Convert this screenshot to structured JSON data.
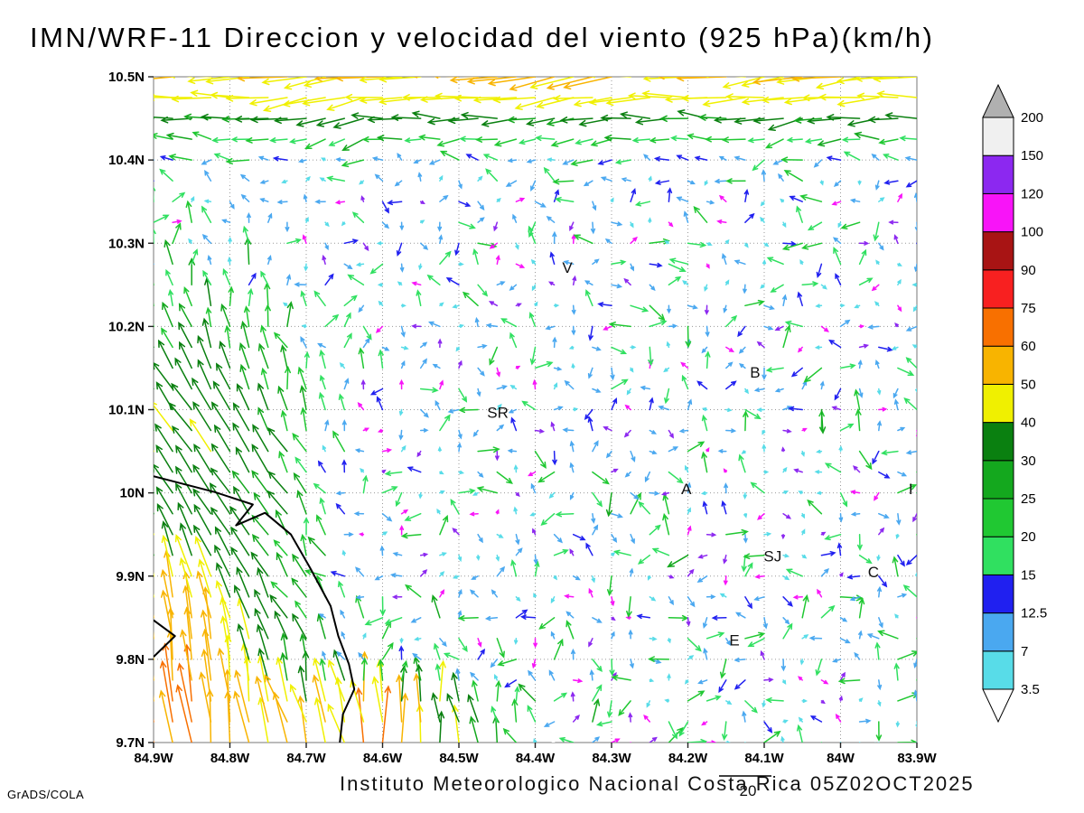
{
  "title": "IMN/WRF-11 Direccion y velocidad del viento (925 hPa)(km/h)",
  "footer": {
    "annotation": "Instituto Meteorologico Nacional Costa Rica 05Z02OCT2025",
    "reference_vector_label": "20",
    "credit": "GrADS/COLA"
  },
  "chart_data": {
    "type": "vector_field",
    "model": "IMN/WRF-11",
    "variable": "Direccion y velocidad del viento",
    "level": "925 hPa",
    "units": "km/h",
    "valid_time": "05Z02OCT2025",
    "grid_on": true,
    "x_axis": {
      "lon_range": [
        -84.9,
        -83.9
      ],
      "ticks": [
        {
          "label": "84.9W",
          "lon": -84.9
        },
        {
          "label": "84.8W",
          "lon": -84.8
        },
        {
          "label": "84.7W",
          "lon": -84.7
        },
        {
          "label": "84.6W",
          "lon": -84.6
        },
        {
          "label": "84.5W",
          "lon": -84.5
        },
        {
          "label": "84.4W",
          "lon": -84.4
        },
        {
          "label": "84.3W",
          "lon": -84.3
        },
        {
          "label": "84.2W",
          "lon": -84.2
        },
        {
          "label": "84.1W",
          "lon": -84.1
        },
        {
          "label": "84W",
          "lon": -84.0
        },
        {
          "label": "83.9W",
          "lon": -83.9
        }
      ]
    },
    "y_axis": {
      "lat_range": [
        9.7,
        10.5
      ],
      "ticks": [
        {
          "label": "9.7N",
          "lat": 9.7
        },
        {
          "label": "9.8N",
          "lat": 9.8
        },
        {
          "label": "9.9N",
          "lat": 9.9
        },
        {
          "label": "10N",
          "lat": 10.0
        },
        {
          "label": "10.1N",
          "lat": 10.1
        },
        {
          "label": "10.2N",
          "lat": 10.2
        },
        {
          "label": "10.3N",
          "lat": 10.3
        },
        {
          "label": "10.4N",
          "lat": 10.4
        },
        {
          "label": "10.5N",
          "lat": 10.5
        }
      ]
    },
    "colorbar": {
      "units": "km/h",
      "levels": [
        3.5,
        7,
        12.5,
        15,
        20,
        25,
        30,
        40,
        50,
        60,
        75,
        90,
        100,
        120,
        150,
        200
      ],
      "colors_between_levels": [
        "#58dce8",
        "#4aa8f0",
        "#2020f0",
        "#30e060",
        "#20c832",
        "#14a81e",
        "#0a8010",
        "#f0f000",
        "#f8b400",
        "#f87000",
        "#f82020",
        "#a81414",
        "#f814f8",
        "#8c28f0",
        "#f0f0f0"
      ],
      "under_color": "#ffffff",
      "over_color": "#b0b0b0"
    },
    "station_labels": [
      {
        "label": "V",
        "lon": -84.358,
        "lat": 10.271
      },
      {
        "label": "SR",
        "lon": -84.449,
        "lat": 10.097
      },
      {
        "label": "B",
        "lon": -84.112,
        "lat": 10.145
      },
      {
        "label": "A",
        "lon": -84.202,
        "lat": 10.005
      },
      {
        "label": "SJ",
        "lon": -84.089,
        "lat": 9.924
      },
      {
        "label": "C",
        "lon": -83.957,
        "lat": 9.905
      },
      {
        "label": "E",
        "lon": -84.139,
        "lat": 9.823
      },
      {
        "label": "I",
        "lon": -83.908,
        "lat": 10.005
      }
    ],
    "coastline": [
      [
        [
          -84.9,
          10.02
        ],
        [
          -84.82,
          10.001
        ],
        [
          -84.77,
          9.986
        ],
        [
          -84.792,
          9.961
        ],
        [
          -84.754,
          9.976
        ],
        [
          -84.72,
          9.95
        ],
        [
          -84.695,
          9.91
        ],
        [
          -84.668,
          9.864
        ],
        [
          -84.658,
          9.828
        ],
        [
          -84.644,
          9.794
        ],
        [
          -84.637,
          9.764
        ],
        [
          -84.652,
          9.734
        ],
        [
          -84.656,
          9.7
        ]
      ],
      [
        [
          -84.9,
          9.847
        ],
        [
          -84.872,
          9.828
        ],
        [
          -84.9,
          9.803
        ]
      ]
    ],
    "field_model": {
      "grid_step_deg": 0.025,
      "reference_speed_kmh": 20,
      "interior": {
        "speed_min": 3.5,
        "speed_max": 22
      },
      "sparse_magenta_fraction": 0.16,
      "top_easterly_band": {
        "lat_start": 10.31,
        "dir_toward_deg": 266,
        "speed_min": 20,
        "speed_max": 54
      },
      "pacific_jet": {
        "lon_east_limit": -84.55,
        "lat_north_limit": 10.42,
        "dir_toward_deg": 338,
        "speed_min": 32,
        "speed_max": 78
      },
      "bottom_band": {
        "lat_max": 9.84,
        "lon_east_limit": -84.25,
        "dir_toward_deg": 352,
        "speed_min": 26,
        "speed_max": 66
      }
    }
  }
}
